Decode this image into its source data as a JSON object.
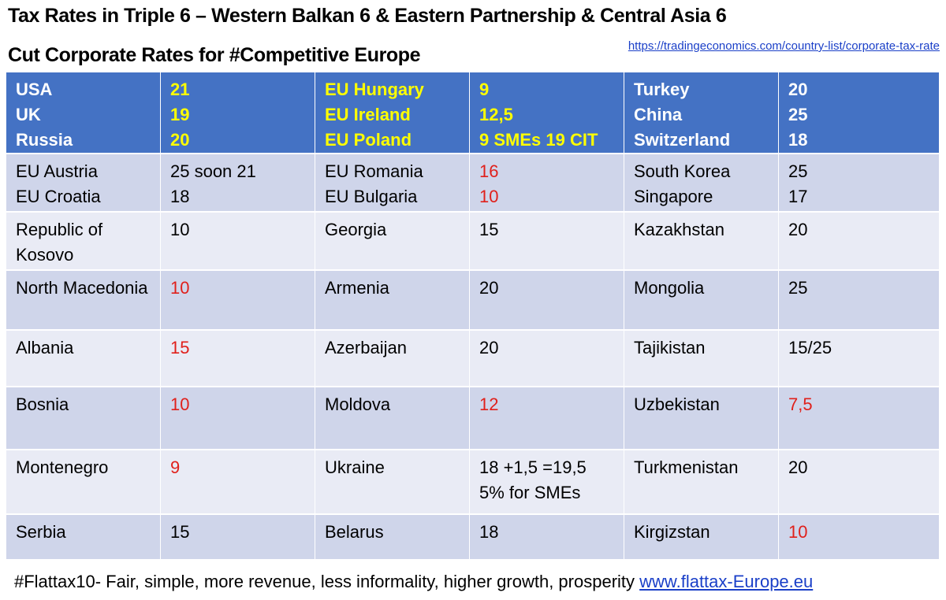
{
  "header": {
    "title_line1": "Tax Rates in Triple 6 – Western Balkan 6 & Eastern Partnership & Central Asia 6",
    "title_line2": "Cut Corporate Rates for #Competitive Europe",
    "source_link": "https://tradingeconomics.com/country-list/corporate-tax-rate"
  },
  "table": {
    "rows": [
      [
        [
          "USA",
          "UK",
          "Russia"
        ],
        [
          "21",
          "19",
          "20"
        ],
        [
          "EU Hungary",
          "EU Ireland",
          "EU Poland"
        ],
        [
          "9",
          "12,5",
          "9 SMEs 19 CIT"
        ],
        [
          "Turkey",
          "China",
          "Switzerland"
        ],
        [
          "20",
          "25",
          "18"
        ]
      ],
      [
        [
          "EU Austria",
          "EU Croatia"
        ],
        [
          "25 soon 21",
          "18"
        ],
        [
          "EU Romania",
          "EU Bulgaria"
        ],
        [
          "16",
          "10"
        ],
        [
          "South Korea",
          "Singapore"
        ],
        [
          "25",
          "17"
        ]
      ],
      [
        [
          "Republic of Kosovo"
        ],
        [
          "10"
        ],
        [
          "Georgia"
        ],
        [
          "15"
        ],
        [
          "Kazakhstan"
        ],
        [
          "20"
        ]
      ],
      [
        [
          "North Macedonia"
        ],
        [
          "10"
        ],
        [
          "Armenia"
        ],
        [
          "20"
        ],
        [
          "Mongolia"
        ],
        [
          "25"
        ]
      ],
      [
        [
          "Albania"
        ],
        [
          "15"
        ],
        [
          "Azerbaijan"
        ],
        [
          "20"
        ],
        [
          "Tajikistan"
        ],
        [
          "15/25"
        ]
      ],
      [
        [
          "Bosnia"
        ],
        [
          "10"
        ],
        [
          "Moldova"
        ],
        [
          "12"
        ],
        [
          "Uzbekistan"
        ],
        [
          "7,5"
        ]
      ],
      [
        [
          "Montenegro"
        ],
        [
          "9"
        ],
        [
          "Ukraine"
        ],
        [
          "18 +1,5 =19,5",
          "5% for SMEs"
        ],
        [
          "Turkmenistan"
        ],
        [
          "20"
        ]
      ],
      [
        [
          "Serbia"
        ],
        [
          "15"
        ],
        [
          "Belarus"
        ],
        [
          "18"
        ],
        [
          "Kirgizstan"
        ],
        [
          "10"
        ]
      ]
    ]
  },
  "footer": {
    "text": "#Flattax10- Fair, simple, more revenue, less informality, higher growth, prosperity",
    "link": "www.flattax-Europe.eu"
  }
}
